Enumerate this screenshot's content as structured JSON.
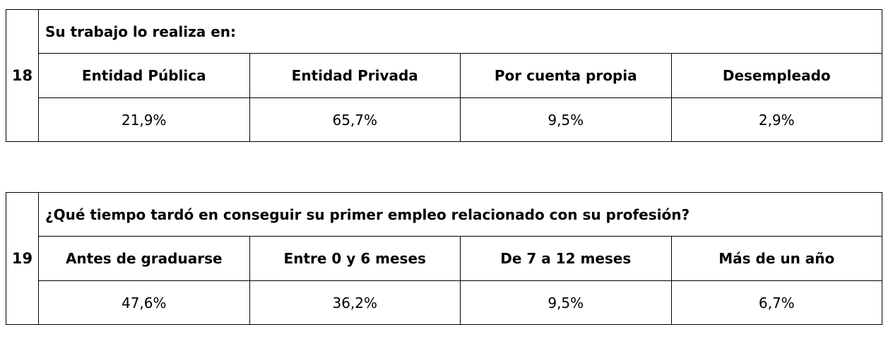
{
  "questions": [
    {
      "number": "18",
      "text": "Su trabajo lo realiza en:",
      "options": [
        {
          "label": "Entidad Pública",
          "value": "21,9%"
        },
        {
          "label": "Entidad Privada",
          "value": "65,7%"
        },
        {
          "label": "Por cuenta propia",
          "value": "9,5%"
        },
        {
          "label": "Desempleado",
          "value": "2,9%"
        }
      ]
    },
    {
      "number": "19",
      "text": "¿Qué tiempo tardó en conseguir su primer empleo relacionado con su profesión?",
      "options": [
        {
          "label": "Antes de graduarse",
          "value": "47,6%"
        },
        {
          "label": "Entre 0 y 6 meses",
          "value": "36,2%"
        },
        {
          "label": "De 7 a 12 meses",
          "value": "9,5%"
        },
        {
          "label": "Más de un año",
          "value": "6,7%"
        }
      ]
    }
  ]
}
